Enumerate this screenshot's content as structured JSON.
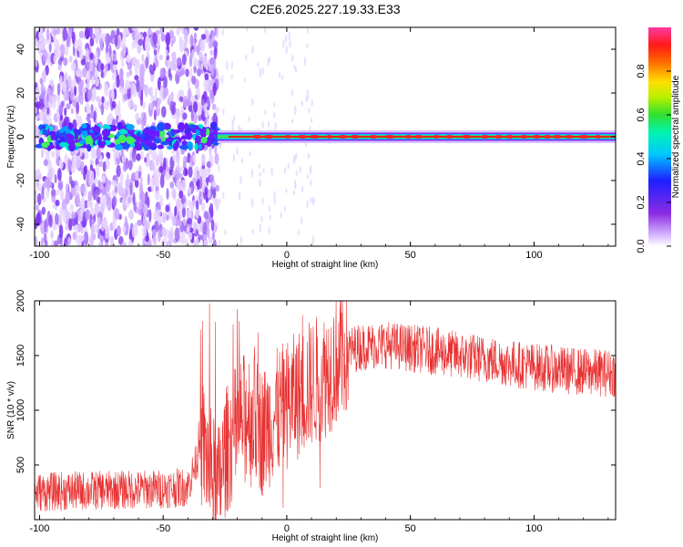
{
  "title": "C2E6.2025.227.19.33.E33",
  "colors": {
    "snr_line": "#e83232",
    "ridge": "#e3261a",
    "axis": "#000000"
  },
  "chart_data": [
    {
      "type": "heatmap",
      "xlabel": "Height of straight line (km)",
      "ylabel": "Frequency (Hz)",
      "xlim": [
        -102,
        133
      ],
      "ylim": [
        -50,
        50
      ],
      "xticks": [
        "-100",
        "-50",
        "0",
        "50",
        "100"
      ],
      "yticks": [
        "-40",
        "-20",
        "0",
        "20",
        "40"
      ],
      "colorbar": {
        "label": "Normalized spectral amplitude",
        "range": [
          0,
          1
        ],
        "ticks": [
          "0.0",
          "0.2",
          "0.4",
          "0.6",
          "0.8"
        ],
        "colormap": "rainbow (purple→blue→cyan→green→yellow→red→pink)"
      },
      "features": {
        "main_ridge_frequency_hz": 0,
        "noisy_scatter_region_km": [
          -102,
          -28
        ],
        "coherent_ridge_region_km": [
          -28,
          133
        ]
      }
    },
    {
      "type": "line",
      "xlabel": "Height of straight line (km)",
      "ylabel": "SNR (10 * v/v)",
      "xlim": [
        -102,
        133
      ],
      "ylim": [
        0,
        2000
      ],
      "xticks": [
        "-100",
        "-50",
        "0",
        "50",
        "100"
      ],
      "yticks": [
        "500",
        "1000",
        "1500",
        "2000"
      ],
      "series_envelope": {
        "x": [
          -102,
          -90,
          -70,
          -50,
          -40,
          -34,
          -30,
          -28,
          -25,
          -20,
          -15,
          -10,
          -5,
          0,
          5,
          10,
          15,
          20,
          25,
          30,
          40,
          50,
          60,
          70,
          80,
          90,
          100,
          110,
          120,
          133
        ],
        "y": [
          250,
          260,
          270,
          280,
          300,
          700,
          380,
          250,
          600,
          850,
          1000,
          800,
          950,
          1050,
          1150,
          1250,
          1320,
          1450,
          1550,
          1580,
          1600,
          1570,
          1540,
          1500,
          1470,
          1430,
          1400,
          1370,
          1350,
          1340
        ]
      }
    }
  ]
}
